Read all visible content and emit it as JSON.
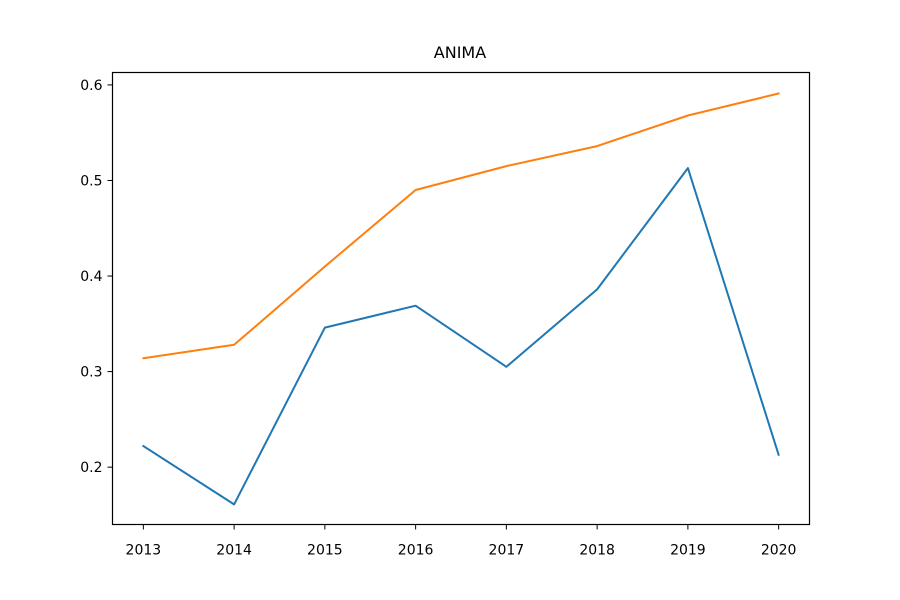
{
  "chart_data": {
    "type": "line",
    "title": "ANIMA",
    "xlabel": "",
    "ylabel": "",
    "x": [
      2013,
      2014,
      2015,
      2016,
      2017,
      2018,
      2019,
      2020
    ],
    "xlim": [
      2012.66,
      2020.34
    ],
    "ylim": [
      0.14,
      0.613
    ],
    "x_ticks": [
      "2013",
      "2014",
      "2015",
      "2016",
      "2017",
      "2018",
      "2019",
      "2020"
    ],
    "y_ticks": [
      "0.2",
      "0.3",
      "0.4",
      "0.5",
      "0.6"
    ],
    "y_tick_values": [
      0.2,
      0.3,
      0.4,
      0.5,
      0.6
    ],
    "grid": false,
    "legend": "none",
    "series": [
      {
        "color": "#1f77b4",
        "values": [
          0.222,
          0.161,
          0.346,
          0.369,
          0.305,
          0.386,
          0.513,
          0.213
        ]
      },
      {
        "color": "#ff7f0e",
        "values": [
          0.314,
          0.328,
          0.41,
          0.49,
          0.515,
          0.536,
          0.568,
          0.591
        ]
      }
    ]
  }
}
